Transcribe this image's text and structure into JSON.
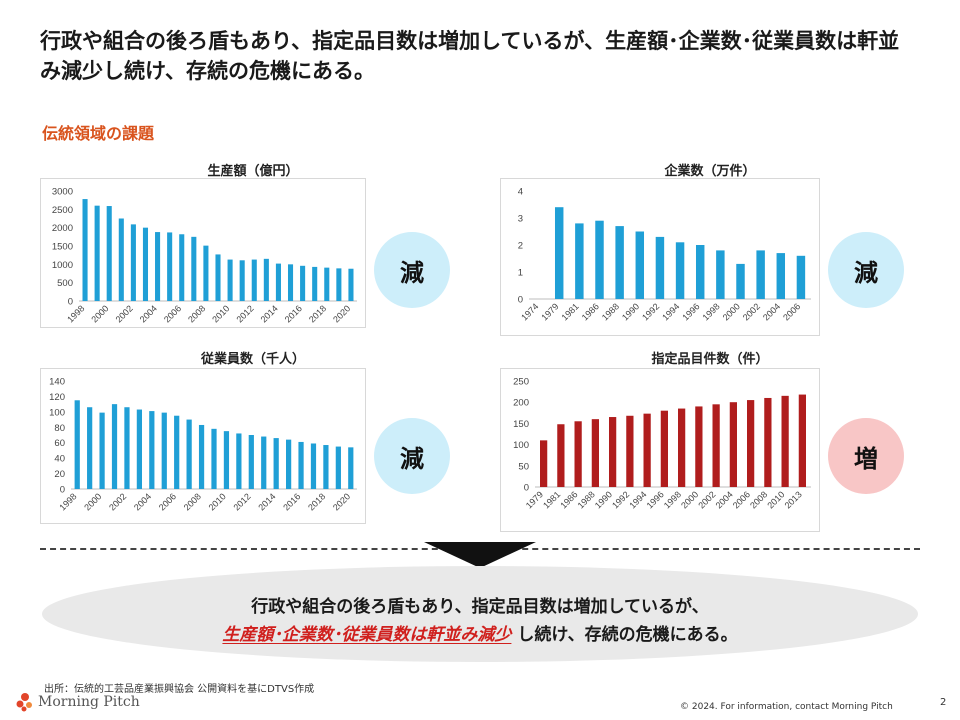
{
  "headline": "行政や組合の後ろ盾もあり、指定品目数は増加しているが、生産額･企業数･従業員数は軒並み減少し続け、存続の危機にある。",
  "section_title": "伝統領域の課題",
  "colors": {
    "blue": "#1f9fd6",
    "red": "#b01d1d",
    "accent": "#d9541e",
    "dec_circle": "#cdeefa",
    "inc_circle": "#f8c6c6"
  },
  "badges": {
    "dec": "減",
    "inc": "増"
  },
  "chart_data": [
    {
      "id": "production",
      "type": "bar",
      "title": "生産額（億円）",
      "categories": [
        "1998",
        "1999",
        "2000",
        "2001",
        "2002",
        "2003",
        "2004",
        "2005",
        "2006",
        "2007",
        "2008",
        "2009",
        "2010",
        "2011",
        "2012",
        "2013",
        "2014",
        "2015",
        "2016",
        "2017",
        "2018",
        "2019",
        "2020"
      ],
      "tick_labels": [
        "1998",
        "2000",
        "2002",
        "2004",
        "2006",
        "2008",
        "2010",
        "2012",
        "2014",
        "2016",
        "2018",
        "2020"
      ],
      "values": [
        2780,
        2600,
        2590,
        2250,
        2090,
        2000,
        1880,
        1870,
        1820,
        1750,
        1510,
        1270,
        1130,
        1110,
        1130,
        1150,
        1020,
        1000,
        960,
        930,
        910,
        890,
        880
      ],
      "ylim": [
        0,
        3000
      ],
      "yticks": [
        0,
        500,
        1000,
        1500,
        2000,
        2500,
        3000
      ],
      "color": "#1f9fd6",
      "badge": "減"
    },
    {
      "id": "companies",
      "type": "bar",
      "title": "企業数（万件）",
      "categories": [
        "1974",
        "1979",
        "1981",
        "1986",
        "1988",
        "1990",
        "1992",
        "1994",
        "1996",
        "1998",
        "2000",
        "2002",
        "2004",
        "2006"
      ],
      "tick_labels": [
        "1974",
        "1979",
        "1981",
        "1986",
        "1988",
        "1990",
        "1992",
        "1994",
        "1996",
        "1998",
        "2000",
        "2002",
        "2004",
        "2006"
      ],
      "values": [
        null,
        3.4,
        2.8,
        2.9,
        2.7,
        2.5,
        2.3,
        2.1,
        2.0,
        1.8,
        1.3,
        1.8,
        1.7,
        1.6
      ],
      "ylim": [
        0,
        4
      ],
      "yticks": [
        0,
        1,
        2,
        3,
        4
      ],
      "color": "#1f9fd6",
      "badge": "減"
    },
    {
      "id": "employees",
      "type": "bar",
      "title": "従業員数（千人）",
      "categories": [
        "1998",
        "1999",
        "2000",
        "2001",
        "2002",
        "2003",
        "2004",
        "2005",
        "2006",
        "2007",
        "2008",
        "2009",
        "2010",
        "2011",
        "2012",
        "2013",
        "2014",
        "2015",
        "2016",
        "2017",
        "2018",
        "2019",
        "2020"
      ],
      "tick_labels": [
        "1998",
        "2000",
        "2002",
        "2004",
        "2006",
        "2008",
        "2010",
        "2012",
        "2014",
        "2016",
        "2018",
        "2020"
      ],
      "values": [
        115,
        106,
        99,
        110,
        106,
        103,
        101,
        99,
        95,
        90,
        83,
        78,
        75,
        72,
        70,
        68,
        66,
        64,
        61,
        59,
        57,
        55,
        54
      ],
      "ylim": [
        0,
        140
      ],
      "yticks": [
        0,
        20,
        40,
        60,
        80,
        100,
        120,
        140
      ],
      "color": "#1f9fd6",
      "badge": "減"
    },
    {
      "id": "designated_items",
      "type": "bar",
      "title": "指定品目件数（件）",
      "categories": [
        "1979",
        "1981",
        "1986",
        "1988",
        "1990",
        "1992",
        "1994",
        "1996",
        "1998",
        "2000",
        "2002",
        "2004",
        "2006",
        "2008",
        "2010",
        "2013"
      ],
      "tick_labels": [
        "1979",
        "1981",
        "1986",
        "1988",
        "1990",
        "1992",
        "1994",
        "1996",
        "1998",
        "2000",
        "2002",
        "2004",
        "2006",
        "2008",
        "2010",
        "2013"
      ],
      "values": [
        110,
        148,
        155,
        160,
        165,
        168,
        173,
        180,
        185,
        190,
        195,
        200,
        205,
        210,
        215,
        218
      ],
      "ylim": [
        0,
        250
      ],
      "yticks": [
        0,
        50,
        100,
        150,
        200,
        250
      ],
      "color": "#b01d1d",
      "badge": "増"
    }
  ],
  "summary": {
    "line1": "行政や組合の後ろ盾もあり、指定品目数は増加しているが、",
    "line2_highlight": "生産額･企業数･従業員数は軒並み減少",
    "line2_rest": "し続け、存続の危機にある。"
  },
  "footer": {
    "source": "出所：伝統的工芸品産業振興協会 公開資料を基にDTVS作成",
    "logo_text": "Morning Pitch",
    "copyright": "© 2024. For information, contact Morning Pitch",
    "page_number": "2"
  }
}
